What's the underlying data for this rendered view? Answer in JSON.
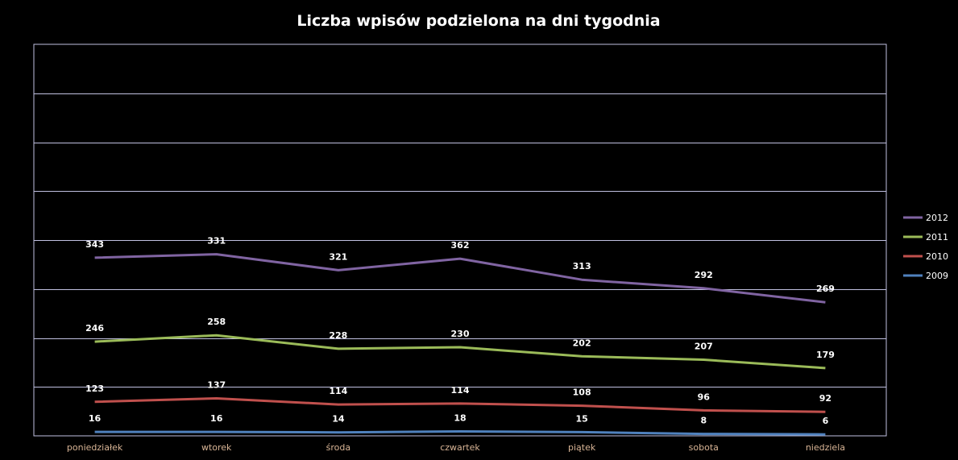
{
  "chart_data": {
    "type": "line",
    "title": "Liczba wpisów podzielona na dni tygodnia",
    "xlabel": "",
    "ylabel": "",
    "categories": [
      "poniedziałek",
      "wtorek",
      "środa",
      "czwartek",
      "piątek",
      "sobota",
      "niedziela"
    ],
    "series": [
      {
        "name": "2012",
        "color": "#8064a2",
        "values": [
          343,
          331,
          321,
          362,
          313,
          292,
          269
        ],
        "level": 3
      },
      {
        "name": "2011",
        "color": "#9bbb59",
        "values": [
          246,
          258,
          228,
          230,
          202,
          207,
          179
        ],
        "level": 2
      },
      {
        "name": "2010",
        "color": "#c0504d",
        "values": [
          123,
          137,
          114,
          114,
          108,
          96,
          92
        ],
        "level": 1
      },
      {
        "name": "2009",
        "color": "#4f81bd",
        "values": [
          16,
          16,
          14,
          18,
          15,
          8,
          6
        ],
        "level": 0
      }
    ],
    "stacked": true,
    "ylim": [
      0,
      1600
    ],
    "y_gridline_step": 200,
    "y_tick_labels_shown": false,
    "grid": true,
    "legend": "right",
    "background_color": "#000000",
    "gridline_color": "#c0c0e0"
  }
}
